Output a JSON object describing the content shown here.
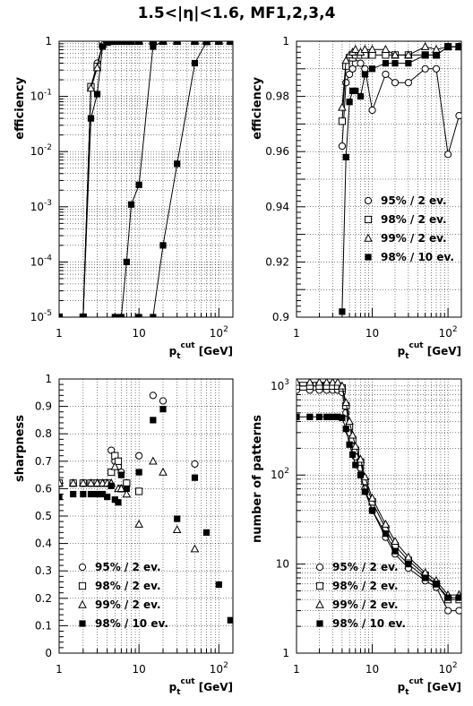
{
  "figure": {
    "title": "1.5<|η|<1.6,   MF1,2,3,4"
  },
  "legend_entries": [
    "95% / 2 ev.",
    "98% / 2 ev.",
    "99% / 2 ev.",
    "98% / 10 ev."
  ],
  "chart_data": [
    {
      "id": "efficiency-log",
      "type": "line",
      "ylabel": "efficiency",
      "xlabel": "p_t^cut [GeV]",
      "xlim": [
        1,
        150
      ],
      "xscale": "log",
      "ylim": [
        1e-05,
        1
      ],
      "yscale": "log",
      "grid": true,
      "yticks": [
        {
          "v": 1e-05,
          "label": "10",
          "exp": "-5"
        },
        {
          "v": 0.0001,
          "label": "10",
          "exp": "-4"
        },
        {
          "v": 0.001,
          "label": "10",
          "exp": "-3"
        },
        {
          "v": 0.01,
          "label": "10",
          "exp": "-2"
        },
        {
          "v": 0.1,
          "label": "10",
          "exp": "-1"
        },
        {
          "v": 1,
          "label": "1",
          "exp": ""
        }
      ],
      "xticks": [
        {
          "v": 1,
          "label": "1",
          "exp": ""
        },
        {
          "v": 10,
          "label": "10",
          "exp": ""
        },
        {
          "v": 100,
          "label": "10",
          "exp": "2"
        }
      ],
      "series": [
        {
          "marker": "circle-open",
          "x": [
            1,
            2,
            2.5,
            3,
            3.5,
            4,
            4.5,
            5,
            6,
            7,
            8,
            10,
            15,
            20,
            30,
            50,
            70,
            100,
            140
          ],
          "y": [
            1e-05,
            1e-05,
            0.15,
            0.4,
            0.85,
            0.97,
            1,
            1,
            1,
            1,
            1,
            1,
            1,
            1,
            1,
            1,
            1,
            1,
            1
          ]
        },
        {
          "marker": "square-open",
          "x": [
            1,
            2,
            2.5,
            3,
            3.5,
            4,
            4.5,
            5,
            6,
            7,
            8,
            10,
            15,
            20,
            30,
            50,
            70,
            100,
            140
          ],
          "y": [
            1e-05,
            1e-05,
            0.15,
            0.35,
            0.9,
            0.98,
            1,
            1,
            1,
            1,
            1,
            1,
            1,
            1,
            1,
            1,
            1,
            1,
            1
          ]
        },
        {
          "marker": "triangle-open",
          "x": [
            1,
            2,
            2.5,
            3,
            3.5,
            4,
            4.5,
            5,
            6,
            7,
            8,
            10,
            15,
            20,
            30,
            50,
            70,
            100,
            140
          ],
          "y": [
            1e-05,
            1e-05,
            0.14,
            0.33,
            0.88,
            0.98,
            1,
            1,
            1,
            1,
            1,
            1,
            1,
            1,
            1,
            1,
            1,
            1,
            1
          ]
        },
        {
          "marker": "square-filled",
          "x": [
            1,
            2,
            2.5,
            3,
            3.5,
            4,
            4.5,
            5,
            6,
            7,
            8,
            10,
            15,
            20,
            30,
            50,
            70,
            100,
            140
          ],
          "y": [
            1e-05,
            1e-05,
            0.04,
            0.11,
            0.8,
            0.95,
            1,
            1,
            1,
            1,
            1,
            1,
            1,
            1,
            1,
            1,
            1,
            1,
            1
          ]
        },
        {
          "marker": "square-filled",
          "x": [
            1,
            5,
            6,
            7,
            8,
            10,
            15,
            20,
            30,
            50,
            70,
            100,
            140
          ],
          "y": [
            1e-05,
            1e-05,
            1e-05,
            0.0001,
            0.0011,
            0.0025,
            0.8,
            1,
            1,
            1,
            1,
            1,
            1
          ]
        },
        {
          "marker": "square-filled",
          "x": [
            1,
            10,
            15,
            20,
            30,
            50,
            70,
            100,
            140
          ],
          "y": [
            1e-05,
            1e-05,
            1e-05,
            0.0002,
            0.006,
            0.4,
            0.97,
            1,
            1
          ]
        }
      ]
    },
    {
      "id": "efficiency-zoom",
      "type": "line",
      "ylabel": "efficiency",
      "xlabel": "p_t^cut [GeV]",
      "xlim": [
        1,
        150
      ],
      "xscale": "log",
      "ylim": [
        0.9,
        1.0
      ],
      "yscale": "linear",
      "grid": true,
      "legend": "bottom-right",
      "yticks": [
        {
          "v": 0.9,
          "label": "0.9",
          "exp": ""
        },
        {
          "v": 0.92,
          "label": "0.92",
          "exp": ""
        },
        {
          "v": 0.94,
          "label": "0.94",
          "exp": ""
        },
        {
          "v": 0.96,
          "label": "0.96",
          "exp": ""
        },
        {
          "v": 0.98,
          "label": "0.98",
          "exp": ""
        },
        {
          "v": 1.0,
          "label": "1",
          "exp": ""
        }
      ],
      "xticks": [
        {
          "v": 1,
          "label": "1",
          "exp": ""
        },
        {
          "v": 10,
          "label": "10",
          "exp": ""
        },
        {
          "v": 100,
          "label": "10",
          "exp": "2"
        }
      ],
      "series": [
        {
          "name": "95% / 2 ev.",
          "marker": "circle-open",
          "x": [
            4,
            4.5,
            5,
            5.5,
            6,
            7,
            8,
            10,
            15,
            20,
            30,
            50,
            70,
            100,
            140
          ],
          "y": [
            0.962,
            0.985,
            0.988,
            0.99,
            0.992,
            0.992,
            0.99,
            0.975,
            0.988,
            0.985,
            0.985,
            0.99,
            0.99,
            0.959,
            0.973
          ]
        },
        {
          "name": "98% / 2 ev.",
          "marker": "square-open",
          "x": [
            4,
            4.5,
            5,
            5.5,
            6,
            7,
            8,
            10,
            15,
            20,
            30,
            50,
            70,
            100,
            140
          ],
          "y": [
            0.971,
            0.991,
            0.994,
            0.994,
            0.995,
            0.995,
            0.995,
            0.995,
            0.995,
            0.995,
            0.995,
            0.995,
            0.995,
            0.998,
            0.998
          ]
        },
        {
          "name": "99% / 2 ev.",
          "marker": "triangle-open",
          "x": [
            4,
            4.5,
            5,
            5.5,
            6,
            7,
            8,
            10,
            15,
            20,
            30,
            50,
            70,
            100,
            140
          ],
          "y": [
            0.976,
            0.993,
            0.995,
            0.996,
            0.997,
            0.996,
            0.997,
            0.997,
            0.997,
            0.995,
            0.995,
            0.998,
            0.997,
            0.998,
            0.998
          ]
        },
        {
          "name": "98% / 10 ev.",
          "marker": "square-filled",
          "x": [
            4,
            4.5,
            5,
            5.5,
            6,
            7,
            8,
            10,
            15,
            20,
            30,
            50,
            70,
            100,
            140
          ],
          "y": [
            0.902,
            0.958,
            0.978,
            0.982,
            0.982,
            0.98,
            0.988,
            0.99,
            0.992,
            0.992,
            0.992,
            0.995,
            0.995,
            0.998,
            0.998
          ]
        }
      ]
    },
    {
      "id": "sharpness",
      "type": "scatter",
      "ylabel": "sharpness",
      "xlabel": "p_t^cut [GeV]",
      "xlim": [
        1,
        150
      ],
      "xscale": "log",
      "ylim": [
        0,
        1
      ],
      "yscale": "linear",
      "grid": true,
      "legend": "bottom-left",
      "yticks": [
        {
          "v": 0,
          "label": "0",
          "exp": ""
        },
        {
          "v": 0.1,
          "label": "0.1",
          "exp": ""
        },
        {
          "v": 0.2,
          "label": "0.2",
          "exp": ""
        },
        {
          "v": 0.3,
          "label": "0.3",
          "exp": ""
        },
        {
          "v": 0.4,
          "label": "0.4",
          "exp": ""
        },
        {
          "v": 0.5,
          "label": "0.5",
          "exp": ""
        },
        {
          "v": 0.6,
          "label": "0.6",
          "exp": ""
        },
        {
          "v": 0.7,
          "label": "0.7",
          "exp": ""
        },
        {
          "v": 0.8,
          "label": "0.8",
          "exp": ""
        },
        {
          "v": 0.9,
          "label": "0.9",
          "exp": ""
        },
        {
          "v": 1,
          "label": "1",
          "exp": ""
        }
      ],
      "xticks": [
        {
          "v": 1,
          "label": "1",
          "exp": ""
        },
        {
          "v": 10,
          "label": "10",
          "exp": ""
        },
        {
          "v": 100,
          "label": "10",
          "exp": "2"
        }
      ],
      "series": [
        {
          "name": "95% / 2 ev.",
          "marker": "circle-open",
          "x": [
            1,
            1.5,
            2,
            2.5,
            3,
            3.5,
            4,
            4.5,
            5,
            5.5,
            6,
            7,
            10,
            15,
            20,
            50
          ],
          "y": [
            0.62,
            0.62,
            0.62,
            0.62,
            0.62,
            0.62,
            0.62,
            0.74,
            0.7,
            0.68,
            0.66,
            0.62,
            0.72,
            0.94,
            0.92,
            0.69
          ]
        },
        {
          "name": "98% / 2 ev.",
          "marker": "square-open",
          "x": [
            1,
            1.5,
            2,
            2.5,
            3,
            3.5,
            4,
            4.5,
            5,
            5.5,
            6,
            7,
            10
          ],
          "y": [
            0.62,
            0.62,
            0.62,
            0.62,
            0.62,
            0.62,
            0.62,
            0.66,
            0.72,
            0.7,
            0.6,
            0.62,
            0.59
          ]
        },
        {
          "name": "99% / 2 ev.",
          "marker": "triangle-open",
          "x": [
            1,
            1.5,
            2,
            2.5,
            3,
            3.5,
            4,
            4.5,
            5,
            5.5,
            6,
            7,
            10,
            15,
            20,
            30,
            50
          ],
          "y": [
            0.62,
            0.62,
            0.62,
            0.62,
            0.62,
            0.62,
            0.62,
            0.62,
            0.68,
            0.6,
            0.6,
            0.58,
            0.47,
            0.7,
            0.66,
            0.45,
            0.38
          ]
        },
        {
          "name": "98% / 10 ev.",
          "marker": "square-filled",
          "x": [
            1,
            1.5,
            2,
            2.5,
            3,
            3.5,
            4,
            4.5,
            5,
            5.5,
            6,
            7,
            10,
            15,
            20,
            30,
            50,
            70,
            100,
            140
          ],
          "y": [
            0.57,
            0.58,
            0.58,
            0.58,
            0.58,
            0.58,
            0.57,
            0.61,
            0.56,
            0.55,
            0.65,
            0.6,
            0.66,
            0.85,
            0.89,
            0.49,
            0.64,
            0.44,
            0.25,
            0.12
          ]
        }
      ]
    },
    {
      "id": "number-of-patterns",
      "type": "line",
      "ylabel": "number of patterns",
      "xlabel": "p_t^cut [GeV]",
      "xlim": [
        1,
        150
      ],
      "xscale": "log",
      "ylim": [
        1,
        1200
      ],
      "yscale": "log",
      "grid": true,
      "legend": "bottom-left",
      "yticks": [
        {
          "v": 1,
          "label": "1",
          "exp": ""
        },
        {
          "v": 10,
          "label": "10",
          "exp": ""
        },
        {
          "v": 100,
          "label": "10",
          "exp": "2"
        },
        {
          "v": 1000,
          "label": "10",
          "exp": "3"
        }
      ],
      "xticks": [
        {
          "v": 1,
          "label": "1",
          "exp": ""
        },
        {
          "v": 10,
          "label": "10",
          "exp": ""
        },
        {
          "v": 100,
          "label": "10",
          "exp": "2"
        }
      ],
      "series": [
        {
          "name": "95% / 2 ev.",
          "marker": "circle-open",
          "x": [
            1,
            1.5,
            2,
            2.5,
            3,
            3.5,
            4,
            4.5,
            5,
            5.5,
            6,
            7,
            8,
            10,
            15,
            20,
            30,
            50,
            70,
            100,
            140
          ],
          "y": [
            900,
            900,
            900,
            900,
            900,
            900,
            850,
            500,
            300,
            220,
            160,
            120,
            70,
            40,
            20,
            13,
            9,
            6.5,
            5.5,
            3,
            3
          ]
        },
        {
          "name": "98% / 2 ev.",
          "marker": "square-open",
          "x": [
            1,
            1.5,
            2,
            2.5,
            3,
            3.5,
            4,
            4.5,
            5,
            5.5,
            6,
            7,
            8,
            10,
            15,
            20,
            30,
            50,
            70,
            100,
            140
          ],
          "y": [
            1000,
            1000,
            1000,
            1000,
            1000,
            1000,
            950,
            600,
            350,
            250,
            190,
            140,
            85,
            50,
            25,
            16,
            11,
            7.5,
            6,
            4,
            4
          ]
        },
        {
          "name": "99% / 2 ev.",
          "marker": "triangle-open",
          "x": [
            1,
            1.5,
            2,
            2.5,
            3,
            3.5,
            4,
            4.5,
            5,
            5.5,
            6,
            7,
            8,
            10,
            15,
            20,
            30,
            50,
            70,
            100,
            140
          ],
          "y": [
            1100,
            1100,
            1100,
            1100,
            1100,
            1100,
            1000,
            650,
            400,
            280,
            210,
            150,
            95,
            55,
            28,
            18,
            12,
            8,
            6.5,
            4.5,
            4.5
          ]
        },
        {
          "name": "98% / 10 ev.",
          "marker": "square-filled",
          "x": [
            1,
            1.5,
            2,
            2.5,
            3,
            3.5,
            4,
            4.5,
            5,
            5.5,
            6,
            7,
            8,
            10,
            15,
            20,
            30,
            50,
            70,
            100,
            140
          ],
          "y": [
            450,
            450,
            450,
            450,
            450,
            450,
            440,
            330,
            220,
            170,
            130,
            100,
            65,
            40,
            22,
            14,
            10,
            7,
            6,
            4.2,
            4.2
          ]
        }
      ]
    }
  ]
}
